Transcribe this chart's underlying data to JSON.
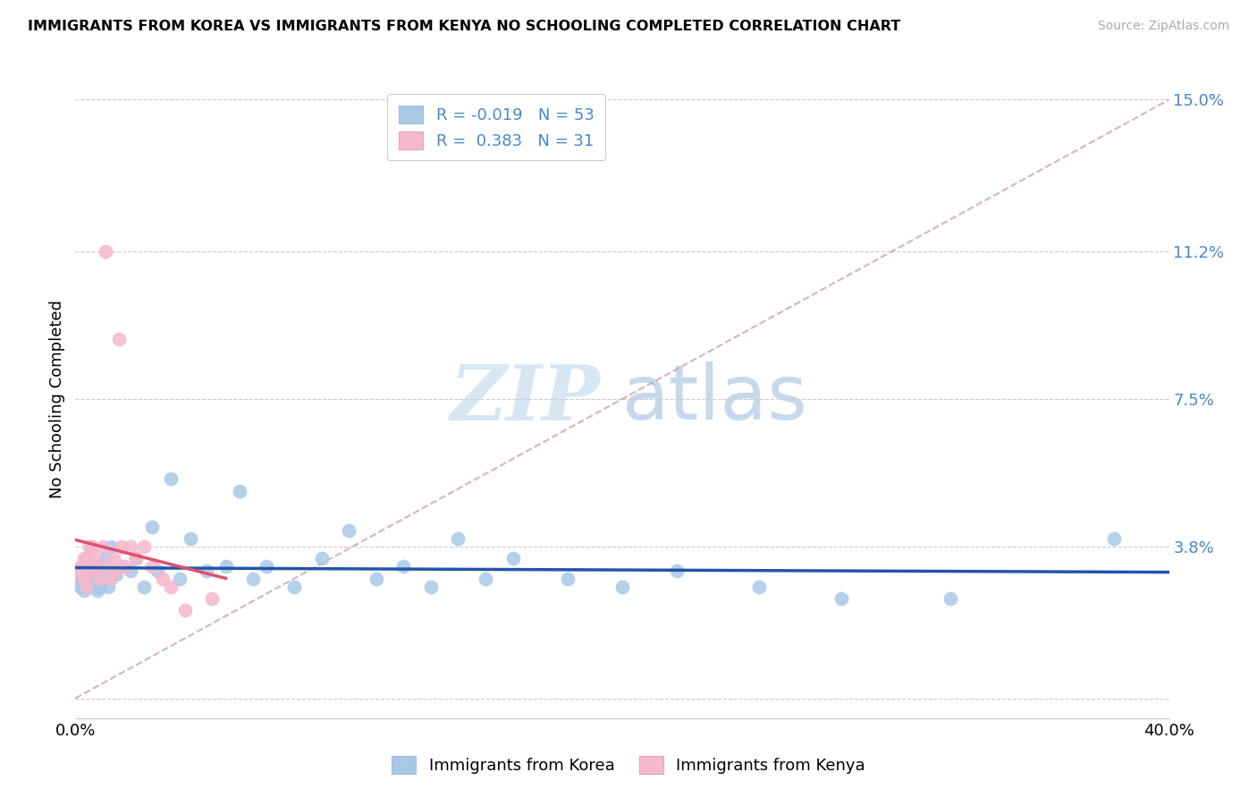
{
  "title": "IMMIGRANTS FROM KOREA VS IMMIGRANTS FROM KENYA NO SCHOOLING COMPLETED CORRELATION CHART",
  "source": "Source: ZipAtlas.com",
  "ylabel": "No Schooling Completed",
  "yticks": [
    0.0,
    0.038,
    0.075,
    0.112,
    0.15
  ],
  "ytick_labels": [
    "",
    "3.8%",
    "7.5%",
    "11.2%",
    "15.0%"
  ],
  "xlim": [
    0.0,
    0.4
  ],
  "ylim": [
    -0.005,
    0.155
  ],
  "legend_r_korea": "R = -0.019",
  "legend_n_korea": "N = 53",
  "legend_r_kenya": "R =  0.383",
  "legend_n_kenya": "N = 31",
  "korea_color": "#a8c8e8",
  "kenya_color": "#f5b8cc",
  "korea_line_color": "#2255aa",
  "kenya_line_color": "#e05070",
  "diag_color": "#d0a0a8",
  "watermark_zip": "ZIP",
  "watermark_atlas": "atlas",
  "korea_x": [
    0.001,
    0.002,
    0.002,
    0.003,
    0.003,
    0.004,
    0.004,
    0.005,
    0.005,
    0.006,
    0.006,
    0.007,
    0.007,
    0.008,
    0.008,
    0.009,
    0.009,
    0.01,
    0.01,
    0.011,
    0.012,
    0.013,
    0.015,
    0.017,
    0.02,
    0.022,
    0.025,
    0.028,
    0.03,
    0.035,
    0.038,
    0.042,
    0.048,
    0.055,
    0.06,
    0.065,
    0.07,
    0.08,
    0.09,
    0.1,
    0.11,
    0.12,
    0.13,
    0.14,
    0.15,
    0.16,
    0.18,
    0.2,
    0.22,
    0.25,
    0.28,
    0.32,
    0.38
  ],
  "korea_y": [
    0.03,
    0.032,
    0.028,
    0.031,
    0.027,
    0.035,
    0.029,
    0.033,
    0.028,
    0.032,
    0.03,
    0.029,
    0.031,
    0.03,
    0.027,
    0.033,
    0.028,
    0.032,
    0.03,
    0.035,
    0.028,
    0.038,
    0.031,
    0.033,
    0.032,
    0.035,
    0.028,
    0.043,
    0.032,
    0.055,
    0.03,
    0.04,
    0.032,
    0.033,
    0.052,
    0.03,
    0.033,
    0.028,
    0.035,
    0.042,
    0.03,
    0.033,
    0.028,
    0.04,
    0.03,
    0.035,
    0.03,
    0.028,
    0.032,
    0.028,
    0.025,
    0.025,
    0.04
  ],
  "kenya_x": [
    0.001,
    0.002,
    0.002,
    0.003,
    0.003,
    0.004,
    0.004,
    0.005,
    0.005,
    0.006,
    0.006,
    0.007,
    0.008,
    0.009,
    0.01,
    0.011,
    0.012,
    0.013,
    0.014,
    0.015,
    0.016,
    0.017,
    0.018,
    0.02,
    0.022,
    0.025,
    0.028,
    0.032,
    0.035,
    0.04,
    0.05
  ],
  "kenya_y": [
    0.032,
    0.031,
    0.033,
    0.035,
    0.03,
    0.033,
    0.028,
    0.038,
    0.035,
    0.032,
    0.038,
    0.035,
    0.033,
    0.03,
    0.038,
    0.112,
    0.033,
    0.03,
    0.035,
    0.032,
    0.09,
    0.038,
    0.033,
    0.038,
    0.035,
    0.038,
    0.033,
    0.03,
    0.028,
    0.022,
    0.025
  ]
}
